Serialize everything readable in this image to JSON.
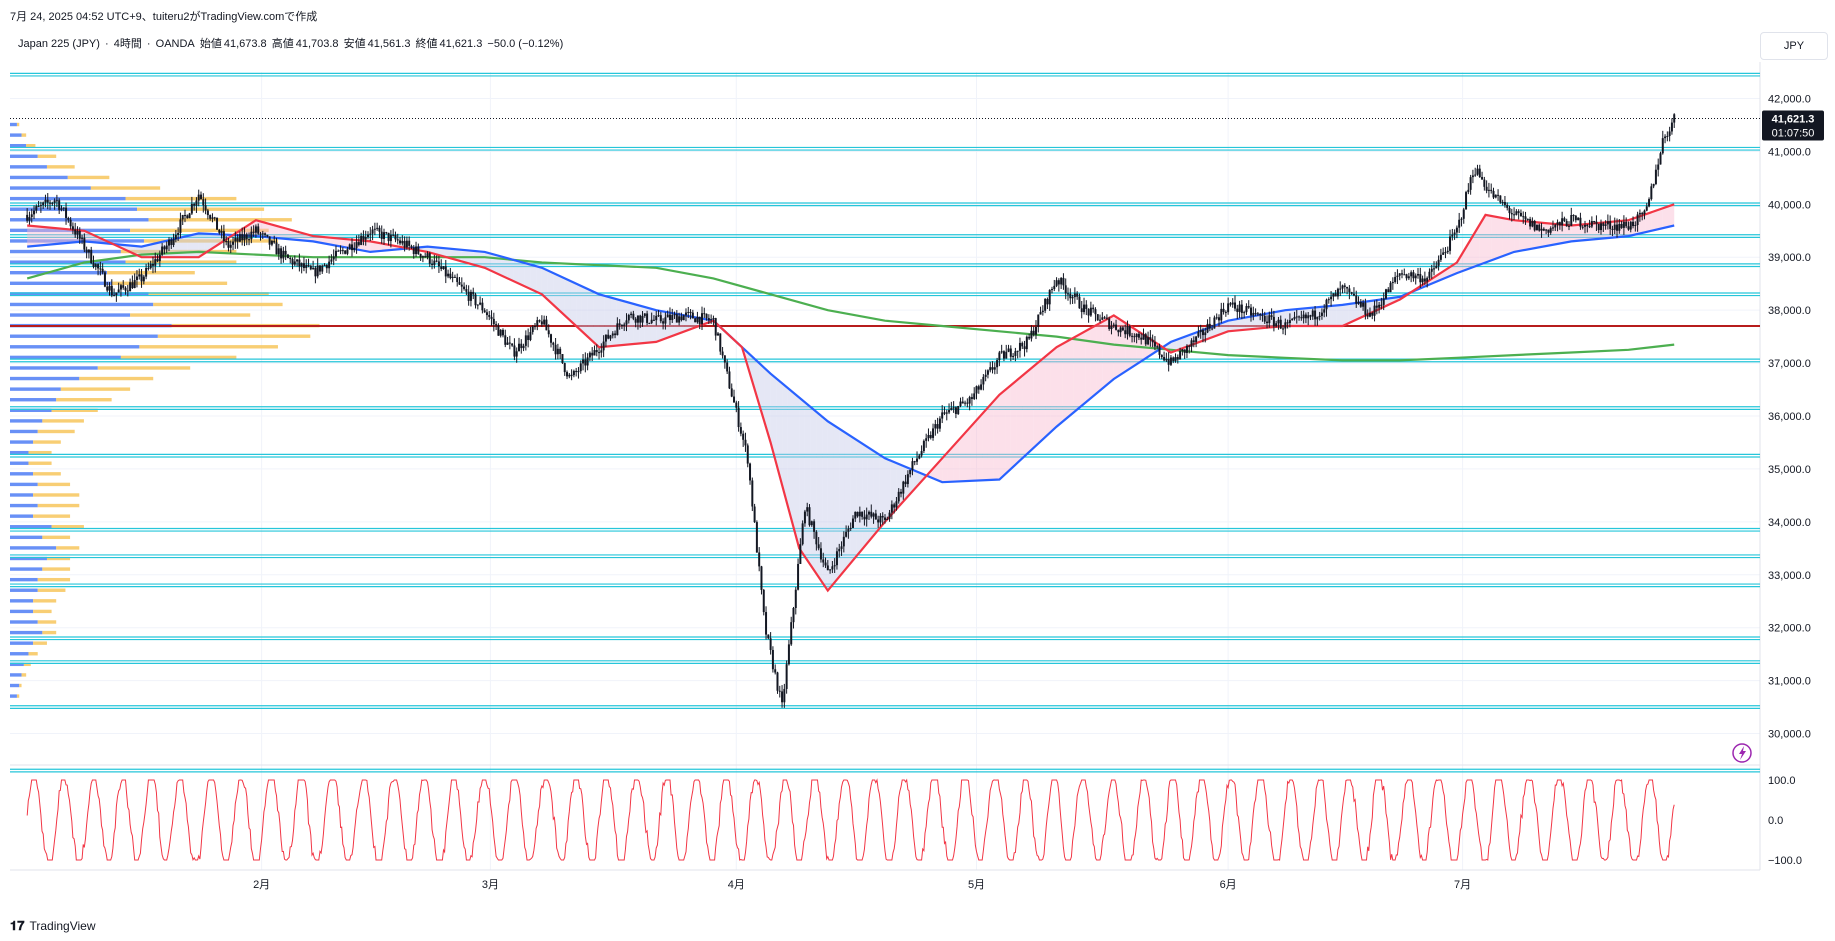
{
  "header": {
    "timestamp_line": "7月 24, 2025 04:52 UTC+9、tuiteru2がTradingView.comで作成",
    "symbol": "Japan 225 (JPY)",
    "interval": "4時間",
    "broker": "OANDA",
    "ohlc": [
      {
        "label": "始値",
        "value": "41,673.8"
      },
      {
        "label": "高値",
        "value": "41,703.8"
      },
      {
        "label": "安値",
        "value": "41,561.3"
      },
      {
        "label": "終値",
        "value": "41,621.3"
      }
    ],
    "change": "−50.0 (−0.12%)"
  },
  "currency_label": "JPY",
  "price_label": {
    "price": "41,621.3",
    "countdown": "01:07:50"
  },
  "brand": "TradingView",
  "colors": {
    "ema_fast": "#f23645",
    "ema_slow": "#2962ff",
    "sma_long": "#4caf50",
    "sr_lines": "#26c6da",
    "red_line": "#b71c1c",
    "vp_up": "#4d7cf4",
    "vp_down": "#f7c65c",
    "osc": "#f23645"
  },
  "chart_data": {
    "type": "line",
    "title": "",
    "x_tick_labels": [
      "2月",
      "3月",
      "4月",
      "5月",
      "6月",
      "7月"
    ],
    "x_tick_weeks": [
      4.1,
      8.1,
      12.4,
      16.6,
      21.0,
      25.1
    ],
    "ylim": [
      29500,
      42500
    ],
    "y_ticks": [
      30000,
      31000,
      32000,
      33000,
      34000,
      35000,
      36000,
      37000,
      38000,
      39000,
      40000,
      41000,
      42000
    ],
    "y_tick_labels": [
      "30,000.0",
      "31,000.0",
      "32,000.0",
      "33,000.0",
      "34,000.0",
      "35,000.0",
      "36,000.0",
      "37,000.0",
      "38,000.0",
      "39,000.0",
      "40,000.0",
      "41,000.0",
      "42,000.0"
    ],
    "last_price": 41621.3,
    "series": [
      {
        "name": "",
        "role": "price",
        "x": [
          0,
          0.5,
          1,
          1.5,
          2,
          2.5,
          3,
          3.5,
          4,
          4.5,
          5,
          5.5,
          6,
          6.5,
          7,
          7.5,
          8,
          8.5,
          9,
          9.5,
          10,
          10.5,
          11,
          11.5,
          12,
          12.3,
          12.6,
          12.9,
          13.2,
          13.6,
          14,
          14.5,
          15,
          15.5,
          16,
          16.5,
          17,
          17.5,
          18,
          18.5,
          19,
          19.5,
          20,
          20.5,
          21,
          21.5,
          22,
          22.5,
          23,
          23.5,
          24,
          24.5,
          25,
          25.3,
          25.6,
          26,
          26.5,
          27,
          27.5,
          28,
          28.3,
          28.6,
          28.8
        ],
        "y": [
          39800,
          40100,
          39200,
          38300,
          38600,
          39300,
          40200,
          39200,
          39500,
          39000,
          38700,
          39100,
          39500,
          39300,
          39000,
          38500,
          38000,
          37200,
          37800,
          36700,
          37300,
          37900,
          37800,
          37900,
          37800,
          36500,
          35200,
          32000,
          30500,
          34300,
          33000,
          34200,
          34000,
          35100,
          36000,
          36300,
          37100,
          37400,
          38600,
          38000,
          37700,
          37500,
          37000,
          37500,
          38100,
          37900,
          37700,
          37900,
          38400,
          37900,
          38700,
          38600,
          39500,
          40700,
          40200,
          39800,
          39500,
          39700,
          39600,
          39600,
          39800,
          41200,
          41621
        ]
      },
      {
        "name": "",
        "role": "ema_fast",
        "x": [
          0,
          1,
          2,
          3,
          4,
          5,
          6,
          7,
          8,
          9,
          10,
          11,
          12,
          12.5,
          13,
          13.5,
          14,
          15,
          16,
          17,
          18,
          19,
          20,
          21,
          22,
          23,
          24,
          25,
          25.5,
          26,
          27,
          28,
          28.8
        ],
        "y": [
          39600,
          39500,
          39000,
          39000,
          39700,
          39400,
          39300,
          39100,
          38800,
          38300,
          37300,
          37400,
          37800,
          37300,
          35500,
          33500,
          32700,
          34000,
          35200,
          36400,
          37300,
          37900,
          37200,
          37600,
          37700,
          37700,
          38200,
          38900,
          39800,
          39700,
          39600,
          39700,
          40000
        ]
      },
      {
        "name": "",
        "role": "ema_slow",
        "x": [
          0,
          1,
          2,
          3,
          4,
          5,
          6,
          7,
          8,
          9,
          10,
          11,
          12,
          13,
          14,
          15,
          16,
          17,
          18,
          19,
          20,
          21,
          22,
          23,
          24,
          25,
          26,
          27,
          28,
          28.8
        ],
        "y": [
          39200,
          39300,
          39200,
          39450,
          39400,
          39300,
          39100,
          39200,
          39100,
          38800,
          38300,
          38000,
          37800,
          36800,
          35900,
          35200,
          34750,
          34800,
          35800,
          36700,
          37400,
          37800,
          38000,
          38100,
          38250,
          38700,
          39100,
          39300,
          39400,
          39600
        ]
      },
      {
        "name": "",
        "role": "sma_long",
        "x": [
          0,
          1,
          2,
          3,
          4,
          5,
          6,
          7,
          8,
          9,
          10,
          11,
          12,
          13,
          14,
          15,
          16,
          17,
          18,
          19,
          20,
          21,
          22,
          23,
          24,
          25,
          26,
          27,
          28,
          28.8
        ],
        "y": [
          38600,
          38900,
          39050,
          39100,
          39050,
          39000,
          39000,
          39000,
          39000,
          38900,
          38850,
          38800,
          38600,
          38300,
          38000,
          37800,
          37700,
          37600,
          37500,
          37350,
          37250,
          37150,
          37100,
          37050,
          37050,
          37100,
          37150,
          37200,
          37250,
          37350
        ]
      }
    ],
    "sr_lines": [
      42450,
      41050,
      40000,
      39400,
      38850,
      38300,
      37050,
      36150,
      35250,
      33850,
      33350,
      32800,
      31800,
      31350,
      30500,
      29300
    ],
    "red_line": 37700,
    "volume_profile": {
      "price_bins": [
        41500,
        41300,
        41100,
        40900,
        40700,
        40500,
        40300,
        40100,
        39900,
        39700,
        39500,
        39300,
        39100,
        38900,
        38700,
        38500,
        38300,
        38100,
        37900,
        37700,
        37500,
        37300,
        37100,
        36900,
        36700,
        36500,
        36300,
        36100,
        35900,
        35700,
        35500,
        35300,
        35100,
        34900,
        34700,
        34500,
        34300,
        34100,
        33900,
        33700,
        33500,
        33300,
        33100,
        32900,
        32700,
        32500,
        32300,
        32100,
        31900,
        31700,
        31500,
        31300,
        31100,
        30900,
        30700
      ],
      "up": [
        0.03,
        0.05,
        0.07,
        0.12,
        0.16,
        0.25,
        0.35,
        0.5,
        0.55,
        0.6,
        0.52,
        0.58,
        0.48,
        0.5,
        0.42,
        0.44,
        0.6,
        0.62,
        0.52,
        0.7,
        0.64,
        0.56,
        0.48,
        0.38,
        0.3,
        0.22,
        0.2,
        0.18,
        0.14,
        0.12,
        0.1,
        0.08,
        0.08,
        0.1,
        0.12,
        0.1,
        0.12,
        0.1,
        0.18,
        0.14,
        0.2,
        0.16,
        0.14,
        0.12,
        0.12,
        0.1,
        0.1,
        0.12,
        0.14,
        0.1,
        0.08,
        0.06,
        0.05,
        0.04,
        0.03
      ],
      "down": [
        0.01,
        0.02,
        0.04,
        0.08,
        0.12,
        0.18,
        0.3,
        0.48,
        0.55,
        0.62,
        0.6,
        0.58,
        0.5,
        0.48,
        0.38,
        0.5,
        0.52,
        0.56,
        0.52,
        0.64,
        0.66,
        0.6,
        0.5,
        0.4,
        0.32,
        0.3,
        0.24,
        0.2,
        0.18,
        0.16,
        0.12,
        0.1,
        0.1,
        0.12,
        0.14,
        0.2,
        0.18,
        0.16,
        0.14,
        0.12,
        0.1,
        0.1,
        0.12,
        0.14,
        0.12,
        0.1,
        0.08,
        0.08,
        0.06,
        0.06,
        0.04,
        0.03,
        0.02,
        0.01,
        0.01
      ]
    },
    "oscillator": {
      "ylim": [
        -110,
        110
      ],
      "y_ticks": [
        100,
        0,
        -100
      ],
      "y_tick_labels": [
        "100.0",
        "0.0",
        "−100.0"
      ]
    }
  }
}
